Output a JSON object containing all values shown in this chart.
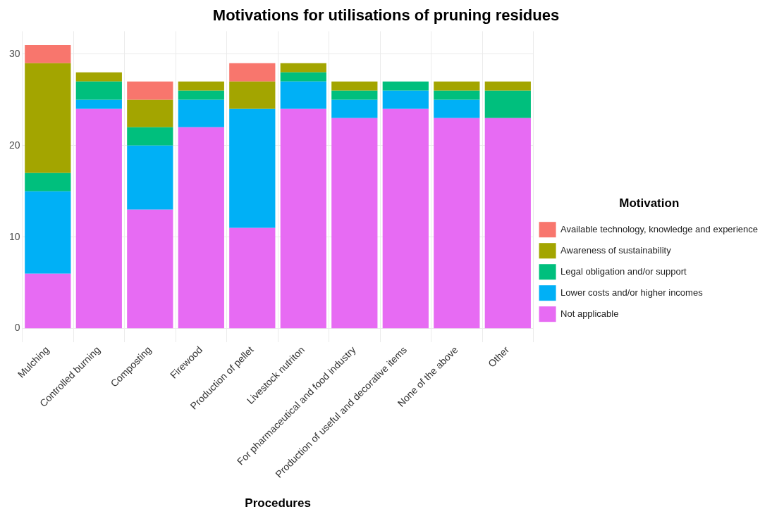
{
  "chart_data": {
    "type": "bar",
    "title": "Motivations for utilisations of pruning residues",
    "xlabel": "Procedures",
    "legend_title": "Motivation",
    "stacked": true,
    "legend": "right",
    "grid": true,
    "categories": [
      "Mulching",
      "Controlled burning",
      "Composting",
      "Firewood",
      "Production of pellet",
      "Livestock nutriton",
      "For pharmaceutical and food industry",
      "Production of useful and decorative items",
      "None of the above",
      "Other"
    ],
    "ylim": [
      -1.5,
      32.5
    ],
    "yticks": [
      0,
      10,
      20,
      30
    ],
    "series": [
      {
        "name": "Not applicable",
        "color": "#e76bf3",
        "values": [
          6,
          24,
          13,
          22,
          11,
          24,
          23,
          24,
          23,
          23
        ]
      },
      {
        "name": "Lower costs and/or higher incomes",
        "color": "#00b0f6",
        "values": [
          9,
          1,
          7,
          3,
          13,
          3,
          2,
          2,
          2,
          0
        ]
      },
      {
        "name": "Legal obligation and/or support",
        "color": "#00bf7d",
        "values": [
          2,
          2,
          2,
          1,
          0,
          1,
          1,
          1,
          1,
          3
        ]
      },
      {
        "name": "Awareness of sustainability",
        "color": "#a3a500",
        "values": [
          12,
          1,
          3,
          1,
          3,
          1,
          1,
          0,
          1,
          1
        ]
      },
      {
        "name": "Available technology, knowledge and experience",
        "color": "#f8766d",
        "values": [
          2,
          0,
          2,
          0,
          2,
          0,
          0,
          0,
          0,
          0
        ]
      }
    ]
  }
}
